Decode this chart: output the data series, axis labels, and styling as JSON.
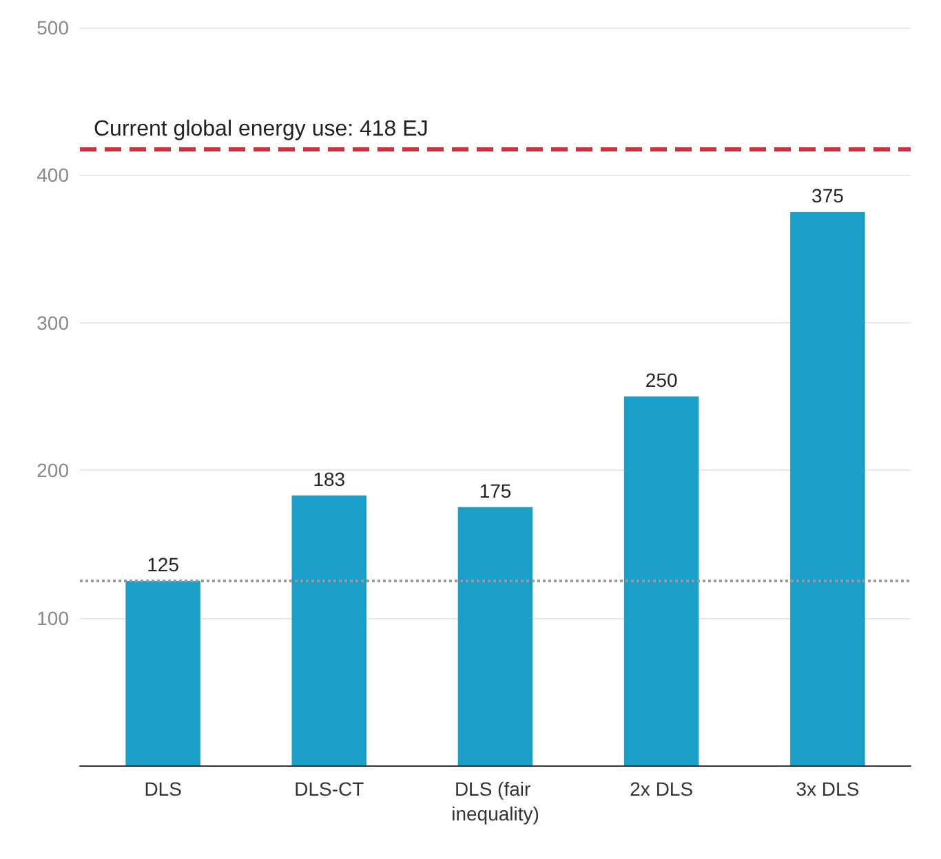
{
  "chart_data": {
    "type": "bar",
    "categories": [
      "DLS",
      "DLS-CT",
      "DLS (fair inequality)",
      "2x DLS",
      "3x DLS"
    ],
    "values": [
      125,
      183,
      175,
      250,
      375
    ],
    "color": "#1a9fc9",
    "data_labels": true,
    "ylim": [
      0,
      500
    ],
    "yticks": [
      {
        "value": 0,
        "label": null
      },
      100,
      200,
      300,
      400,
      500
    ],
    "grid": "y",
    "ref_lines": [
      {
        "axis": "y",
        "value": 418,
        "label": "Current global energy use: 418 EJ",
        "color": "#d62d3a",
        "line_style": "dashed"
      },
      {
        "axis": "y",
        "value": 125,
        "label": null,
        "color": "#999999",
        "line_style": "dotted"
      }
    ]
  }
}
